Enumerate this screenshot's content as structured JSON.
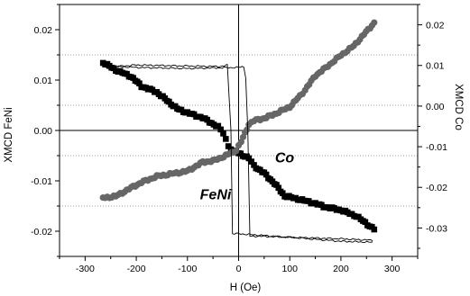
{
  "chart_data": {
    "type": "scatter",
    "xlabel": "H (Oe)",
    "ylabel_left": "XMCD FeNi",
    "ylabel_right": "XMCD Co",
    "xlim": [
      -350,
      350
    ],
    "ylim_left": [
      0.025,
      -0.025
    ],
    "ylim_right": [
      -0.037,
      0.025
    ],
    "xticks": [
      -300,
      -200,
      -100,
      0,
      100,
      200,
      300
    ],
    "yticks_left": [
      -0.02,
      -0.01,
      0.0,
      0.01,
      0.02
    ],
    "yticks_left_labels": [
      "-0.02",
      "-0.01",
      "0.00",
      "0.01",
      "0.02"
    ],
    "yticks_right": [
      0.02,
      0.01,
      0.0,
      -0.01,
      -0.02,
      -0.03
    ],
    "yticks_right_labels": [
      "0.02",
      "0.01",
      "0.00",
      "-0.01",
      "-0.02",
      "-0.03"
    ],
    "hlines_left_dotted": [
      -0.015,
      -0.005,
      0.005,
      0.015
    ],
    "annotations": [
      {
        "text": "FeNi",
        "x": -45,
        "y_left": -0.0137
      },
      {
        "text": "Co",
        "x": 90,
        "y_left": -0.0063
      }
    ],
    "series": [
      {
        "name": "FeNi",
        "marker": "square",
        "color": "#000000",
        "axis": "left",
        "x": [
          -265,
          -240,
          -210,
          -190,
          -160,
          -120,
          -100,
          -70,
          -40,
          -30,
          -20,
          -10,
          0,
          20,
          30,
          50,
          70,
          90,
          120,
          150,
          170,
          200,
          230,
          265
        ],
        "y": [
          0.0135,
          0.012,
          0.0107,
          0.0088,
          0.0076,
          0.0043,
          0.0035,
          0.0025,
          0.0007,
          -0.0005,
          -0.003,
          -0.0042,
          -0.0045,
          -0.0055,
          -0.007,
          -0.0085,
          -0.0105,
          -0.013,
          -0.0137,
          -0.0145,
          -0.0152,
          -0.0158,
          -0.017,
          -0.0196
        ]
      },
      {
        "name": "Co",
        "marker": "circle",
        "color": "#666666",
        "axis": "right",
        "x": [
          -265,
          -240,
          -210,
          -190,
          -160,
          -100,
          -70,
          -50,
          -25,
          -5,
          5,
          20,
          30,
          50,
          70,
          100,
          120,
          130,
          150,
          170,
          200,
          225,
          265
        ],
        "y": [
          -0.0226,
          -0.0222,
          -0.0201,
          -0.0188,
          -0.0173,
          -0.016,
          -0.0138,
          -0.0135,
          -0.0122,
          -0.0109,
          -0.0088,
          -0.0045,
          -0.0036,
          -0.003,
          -0.002,
          -0.0002,
          0.0025,
          0.004,
          0.0075,
          0.0094,
          0.0125,
          0.0148,
          0.0205
        ]
      },
      {
        "name": "FeNi loop upper branch",
        "marker": "none",
        "style": "line",
        "axis": "left",
        "x": [
          -262,
          -200,
          -100,
          -40,
          -28,
          -22,
          -15,
          -12,
          0,
          100,
          200,
          262
        ],
        "y": [
          0.0125,
          0.013,
          0.0128,
          0.0127,
          0.0128,
          0.013,
          0.0,
          -0.0205,
          -0.0205,
          -0.0212,
          -0.022,
          -0.0222
        ]
      },
      {
        "name": "FeNi loop lower branch",
        "marker": "none",
        "style": "line",
        "axis": "left",
        "x": [
          -262,
          -200,
          -100,
          0,
          10,
          14,
          18,
          22,
          40,
          100,
          200,
          262
        ],
        "y": [
          0.0128,
          0.0125,
          0.0123,
          0.0125,
          0.0127,
          0.0105,
          0.0,
          -0.021,
          -0.021,
          -0.0212,
          -0.0215,
          -0.0218
        ]
      }
    ]
  }
}
